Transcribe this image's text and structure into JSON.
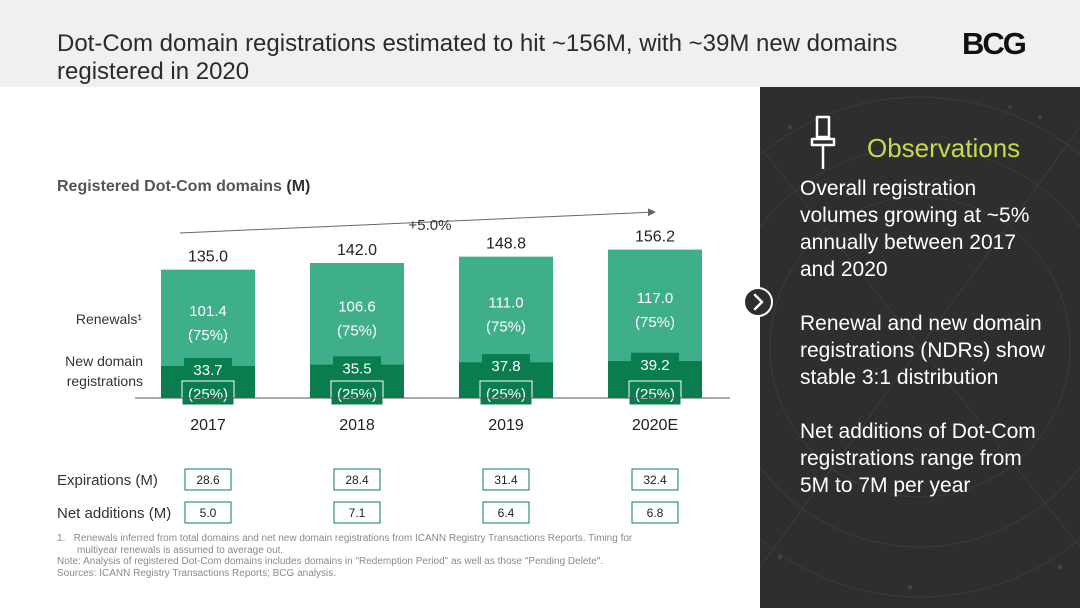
{
  "header": {
    "title": "Dot-Com domain registrations estimated to hit ~156M, with ~39M new domains registered in 2020",
    "logo": "BCG"
  },
  "chart_data": {
    "type": "bar",
    "title": "Registered Dot-Com domains",
    "title_unit": "(M)",
    "categories": [
      "2017",
      "2018",
      "2019",
      "2020E"
    ],
    "totals": [
      135.0,
      142.0,
      148.8,
      156.2
    ],
    "total_labels": [
      "135.0",
      "142.0",
      "148.8",
      "156.2"
    ],
    "series": [
      {
        "name": "New domain registrations",
        "label_lines": [
          "New domain",
          "registrations"
        ],
        "color": "#0a7d4f",
        "values": [
          33.7,
          35.5,
          37.8,
          39.2
        ],
        "value_labels": [
          "33.7",
          "35.5",
          "37.8",
          "39.2"
        ],
        "pct_labels": [
          "(25%)",
          "(25%)",
          "(25%)",
          "(25%)"
        ]
      },
      {
        "name": "Renewals",
        "label_lines": [
          "Renewals¹"
        ],
        "color": "#3fae8a",
        "values": [
          101.4,
          106.6,
          111.0,
          117.0
        ],
        "value_labels": [
          "101.4",
          "106.6",
          "111.0",
          "117.0"
        ],
        "pct_labels": [
          "(75%)",
          "(75%)",
          "(75%)",
          "(75%)"
        ]
      }
    ],
    "growth_annotation": "+5.0%",
    "ylim": [
      0,
      160
    ],
    "rows": [
      {
        "label": "Expirations",
        "unit": "(M)",
        "values": [
          "28.6",
          "28.4",
          "31.4",
          "32.4"
        ]
      },
      {
        "label": "Net additions",
        "unit": "(M)",
        "values": [
          "5.0",
          "7.1",
          "6.4",
          "6.8"
        ]
      }
    ]
  },
  "footnotes": [
    "1.   Renewals inferred from total domains and net new domain registrations from ICANN Registry Transactions Reports. Timing for",
    "multiyear renewals is assumed to average out.",
    "Note: Analysis of registered Dot-Com domains includes domains in \"Redemption Period\" as well as those \"Pending Delete\".",
    "Sources: ICANN Registry Transactions Reports; BCG analysis."
  ],
  "observations": {
    "title": "Observations",
    "items": [
      "Overall registration volumes growing at ~5% annually between 2017 and 2020",
      "Renewal and new domain registrations (NDRs) show stable 3:1 distribution",
      "Net additions of Dot-Com registrations range from 5M to 7M per year"
    ]
  },
  "colors": {
    "renewals": "#3fae8a",
    "new_domains": "#0a7d4f",
    "panel_bg": "#2e2e2e",
    "accent": "#c8d94f"
  },
  "icons": {
    "pin": "pushpin-icon",
    "next": "chevron-right-icon"
  }
}
